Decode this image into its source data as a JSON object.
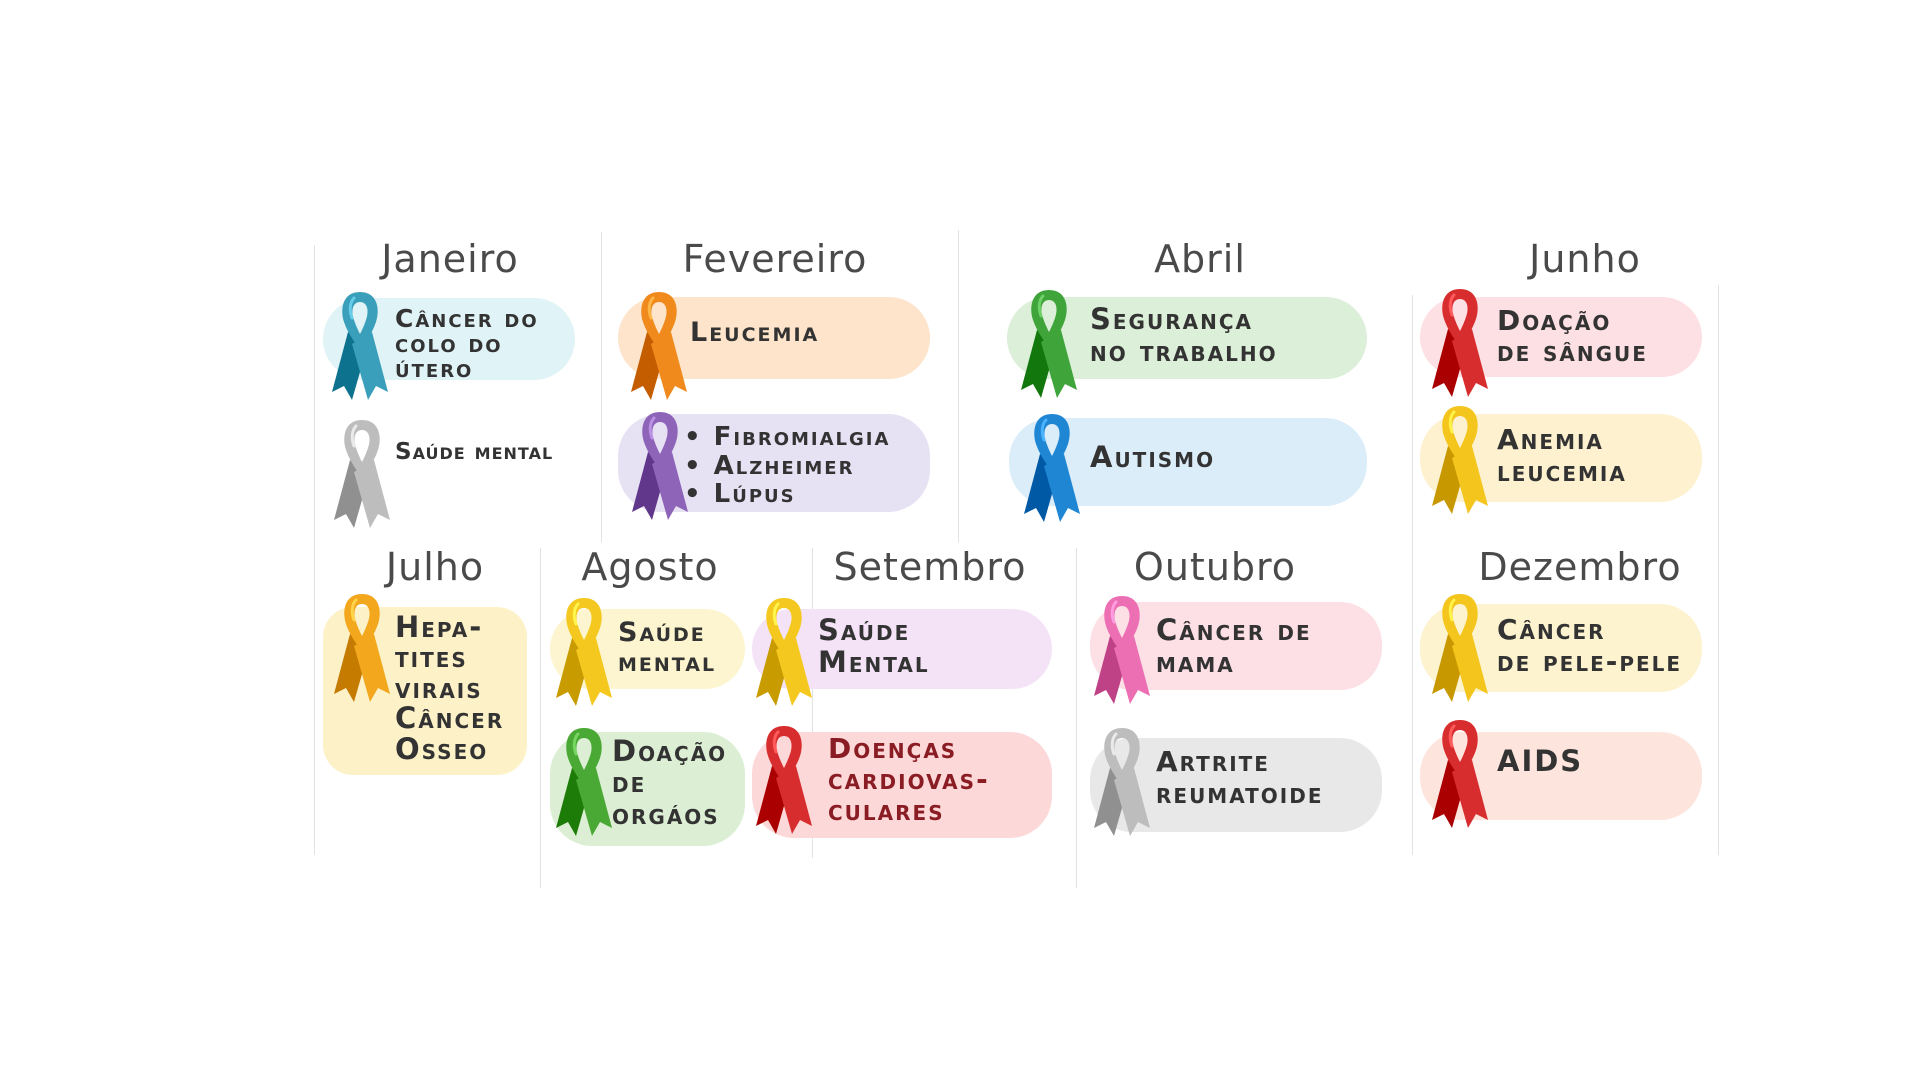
{
  "months": [
    {
      "name": "Janeiro",
      "items": [
        {
          "lines": [
            "Câncer do",
            "colo do",
            "útero"
          ],
          "ribbon_color": "#3a9fba",
          "pill_color": "#e0f3f6",
          "ribbon_icon": "awareness-ribbon-icon"
        },
        {
          "lines": [
            "Saúde mental"
          ],
          "ribbon_color": "#bdbdbd",
          "pill_color": "",
          "ribbon_icon": "awareness-ribbon-icon"
        }
      ]
    },
    {
      "name": "Fevereiro",
      "items": [
        {
          "lines": [
            "Leucemia"
          ],
          "ribbon_color": "#f08a1c",
          "pill_color": "#fde4cb"
        },
        {
          "lines": [
            "• Fibromialgia",
            "• Alzheimer",
            "• Lúpus"
          ],
          "ribbon_color": "#8e64b8",
          "pill_color": "#e7e1f4"
        }
      ]
    },
    {
      "name": "Abril",
      "items": [
        {
          "lines": [
            "Segurança",
            "no trabalho"
          ],
          "ribbon_color": "#3fa43a",
          "pill_color": "#dcefd8"
        },
        {
          "lines": [
            "Autismo"
          ],
          "ribbon_color": "#1e86d2",
          "pill_color": "#dcedfa"
        }
      ]
    },
    {
      "name": "Junho",
      "items": [
        {
          "lines": [
            "Doação",
            "de sângue"
          ],
          "ribbon_color": "#d82d2f",
          "pill_color": "#fde0e3"
        },
        {
          "lines": [
            "Anemia",
            "leucemia"
          ],
          "ribbon_color": "#f4c51c",
          "pill_color": "#fdf1cf"
        }
      ]
    },
    {
      "name": "Julho",
      "items": [
        {
          "lines": [
            "Hepa-",
            "tites",
            "virais",
            "Câncer",
            "Osseo"
          ],
          "ribbon_color": "#f2a71d",
          "pill_color": "#fdf1c8"
        }
      ]
    },
    {
      "name": "Agosto",
      "items": [
        {
          "lines": [
            "Saúde",
            "mental"
          ],
          "ribbon_color": "#f5c81f",
          "pill_color": "#fdf5cf"
        },
        {
          "lines": [
            "Doação",
            "de",
            "orgáos"
          ],
          "ribbon_color": "#4aa834",
          "pill_color": "#dcefd4"
        }
      ]
    },
    {
      "name": "Setembro",
      "items": [
        {
          "lines": [
            "Saúde",
            "Mental"
          ],
          "ribbon_color": "#f5c81f",
          "pill_color": "#f4e3f7"
        },
        {
          "lines": [
            "Doenças",
            "cardiovas-",
            "culares"
          ],
          "ribbon_color": "#d82d2f",
          "pill_color": "#fdd8d8"
        }
      ]
    },
    {
      "name": "Outubro",
      "items": [
        {
          "lines": [
            "Câncer de",
            "mama"
          ],
          "ribbon_color": "#ec6fb3",
          "pill_color": "#fde0e6"
        },
        {
          "lines": [
            "Artrite",
            "reumatoide"
          ],
          "ribbon_color": "#bdbdbd",
          "pill_color": "#e8e8e8"
        }
      ]
    },
    {
      "name": "Dezembro",
      "items": [
        {
          "lines": [
            "Câncer",
            "de pele-pele"
          ],
          "ribbon_color": "#f4c51c",
          "pill_color": "#fdf3cf"
        },
        {
          "lines": [
            "AIDS"
          ],
          "ribbon_color": "#d82d2f",
          "pill_color": "#fde4dc"
        }
      ]
    }
  ]
}
